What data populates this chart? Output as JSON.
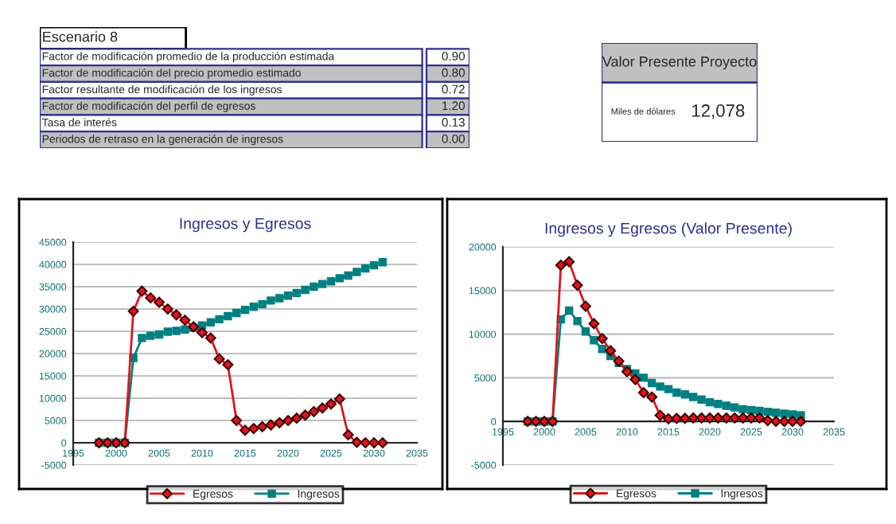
{
  "chart_data": [
    {
      "type": "other",
      "title": "Escenario 8",
      "annotations": [
        "Factor de modificación promedio de la producción estimada",
        "0.90",
        "Factor de modificación del precio promedio estimado",
        "0.80",
        "Factor resultante de modificación de los ingresos",
        "0.72",
        "Factor de modificación del perfil de egresos",
        "1.20",
        "Tasa de interés",
        "0.13",
        "Periodos de retraso en la generación de ingresos",
        "0.00"
      ]
    },
    {
      "type": "other",
      "title": "Valor Presente Proyecto",
      "annotations": [
        "Miles de dólares",
        "12,078"
      ]
    },
    {
      "type": "line",
      "title": "Ingresos y Egresos",
      "x": [
        1998,
        1999,
        2000,
        2001,
        2002,
        2003,
        2004,
        2005,
        2006,
        2007,
        2008,
        2009,
        2010,
        2011,
        2012,
        2013,
        2014,
        2015,
        2016,
        2017,
        2018,
        2019,
        2020,
        2021,
        2022,
        2023,
        2024,
        2025,
        2026,
        2027,
        2028,
        2029,
        2030,
        2031
      ],
      "series": [
        {
          "name": "Egresos",
          "color": "#e0141e",
          "marker": "diamond",
          "values": [
            0,
            0,
            0,
            0,
            29500,
            34000,
            32500,
            31500,
            30000,
            28700,
            27500,
            26000,
            24700,
            23500,
            18800,
            17500,
            5000,
            2800,
            3200,
            3600,
            4000,
            4500,
            5000,
            5500,
            6200,
            7000,
            7800,
            8700,
            9800,
            1800,
            100,
            0,
            0,
            0
          ]
        },
        {
          "name": "Ingresos",
          "color": "#008080",
          "marker": "square",
          "values": [
            0,
            0,
            0,
            0,
            19000,
            23500,
            24000,
            24300,
            24900,
            25100,
            25400,
            25800,
            26300,
            27000,
            27700,
            28400,
            29100,
            29800,
            30500,
            31100,
            31900,
            32400,
            33000,
            33600,
            34300,
            35000,
            35600,
            36200,
            36900,
            37500,
            38300,
            39100,
            39800,
            40500
          ]
        }
      ],
      "xlim": [
        1995,
        2035
      ],
      "xticks": [
        1995,
        2000,
        2005,
        2010,
        2015,
        2020,
        2025,
        2030,
        2035
      ],
      "ylim": [
        -5000,
        45000
      ],
      "yticks": [
        -5000,
        0,
        5000,
        10000,
        15000,
        20000,
        25000,
        30000,
        35000,
        40000,
        45000
      ],
      "grid": "y",
      "legend": "bottom"
    },
    {
      "type": "line",
      "title": "Ingresos y Egresos (Valor Presente)",
      "x": [
        1998,
        1999,
        2000,
        2001,
        2002,
        2003,
        2004,
        2005,
        2006,
        2007,
        2008,
        2009,
        2010,
        2011,
        2012,
        2013,
        2014,
        2015,
        2016,
        2017,
        2018,
        2019,
        2020,
        2021,
        2022,
        2023,
        2024,
        2025,
        2026,
        2027,
        2028,
        2029,
        2030,
        2031
      ],
      "series": [
        {
          "name": "Egresos",
          "color": "#e0141e",
          "marker": "diamond",
          "values": [
            0,
            0,
            0,
            0,
            17900,
            18300,
            15600,
            13200,
            11200,
            9500,
            8100,
            6900,
            5700,
            4800,
            3300,
            2800,
            700,
            300,
            350,
            350,
            400,
            400,
            400,
            400,
            400,
            400,
            400,
            400,
            400,
            100,
            0,
            0,
            0,
            0
          ]
        },
        {
          "name": "Ingresos",
          "color": "#008080",
          "marker": "square",
          "values": [
            0,
            0,
            0,
            0,
            11700,
            12700,
            11500,
            10300,
            9300,
            8300,
            7500,
            6700,
            6000,
            5500,
            5000,
            4400,
            4000,
            3700,
            3300,
            3100,
            2800,
            2500,
            2200,
            2000,
            1800,
            1600,
            1400,
            1300,
            1200,
            1100,
            1000,
            900,
            800,
            700
          ]
        }
      ],
      "xlim": [
        1995,
        2035
      ],
      "xticks": [
        1995,
        2000,
        2005,
        2010,
        2015,
        2020,
        2025,
        2030,
        2035
      ],
      "ylim": [
        -5000,
        20000
      ],
      "yticks": [
        -5000,
        0,
        5000,
        10000,
        15000,
        20000
      ],
      "grid": "y",
      "legend": "bottom"
    }
  ]
}
